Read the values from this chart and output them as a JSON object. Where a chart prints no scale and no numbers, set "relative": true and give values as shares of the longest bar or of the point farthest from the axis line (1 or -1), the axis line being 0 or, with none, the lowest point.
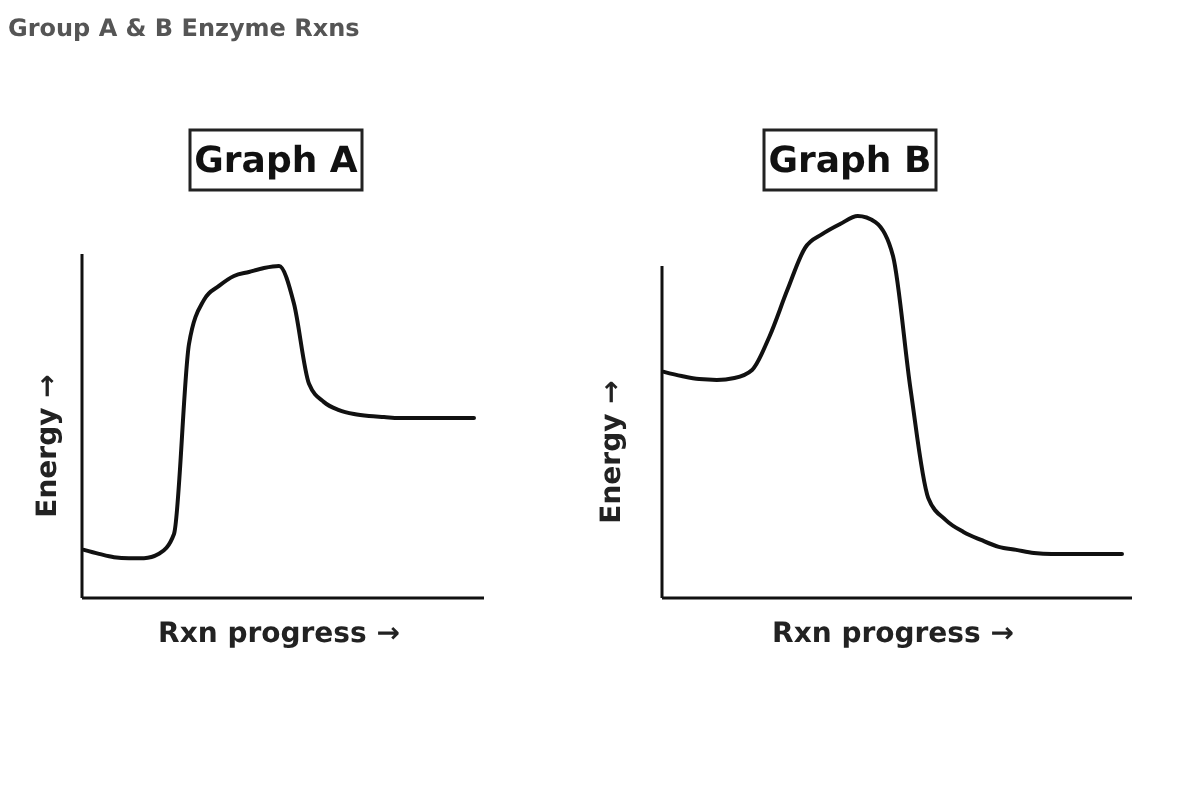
{
  "chart_data": [
    {
      "type": "line",
      "title": "Graph A",
      "xlabel": "Rxn progress →",
      "ylabel": "Energy →",
      "relative": true,
      "annotations": [
        "Group A & B Enzyme Rxns"
      ],
      "categories": [
        null,
        null,
        null,
        null,
        null,
        null,
        null,
        null,
        null,
        null,
        null,
        null,
        null,
        null,
        null,
        null,
        null,
        null,
        null,
        null,
        null,
        null,
        null,
        null,
        null,
        null,
        null
      ],
      "series": [
        {
          "color": "#111111",
          "values": [
            0.145,
            0.133,
            0.123,
            0.12,
            0.12,
            0.133,
            0.193,
            0.765,
            0.898,
            0.94,
            0.97,
            0.982,
            0.994,
            1,
            0.886,
            0.645,
            0.59,
            0.566,
            0.554,
            0.548,
            0.545,
            0.542,
            0.542,
            0.542,
            0.542,
            0.542,
            0.542
          ]
        }
      ]
    },
    {
      "type": "line",
      "title": "Graph B",
      "xlabel": "Rxn progress →",
      "ylabel": "Energy →",
      "relative": true,
      "categories": [
        null,
        null,
        null,
        null,
        null,
        null,
        null,
        null,
        null,
        null,
        null,
        null,
        null,
        null,
        null,
        null,
        null,
        null,
        null,
        null,
        null,
        null,
        null,
        null,
        null,
        null,
        null
      ],
      "series": [
        {
          "color": "#111111",
          "values": [
            0.592,
            0.581,
            0.573,
            0.571,
            0.576,
            0.597,
            0.686,
            0.806,
            0.916,
            0.953,
            0.979,
            1,
            0.984,
            0.895,
            0.545,
            0.262,
            0.204,
            0.173,
            0.152,
            0.134,
            0.126,
            0.118,
            0.115,
            0.115,
            0.115,
            0.115,
            0.115
          ]
        }
      ]
    }
  ]
}
